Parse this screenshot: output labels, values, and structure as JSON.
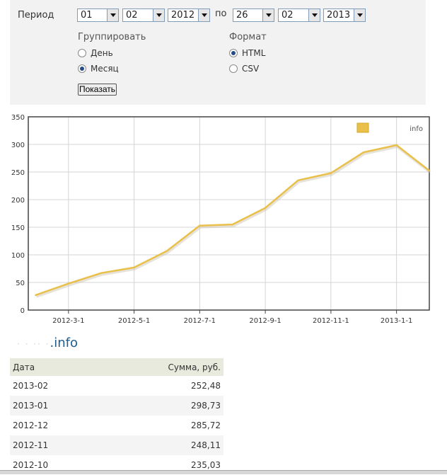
{
  "filter": {
    "period_label": "Период",
    "from": {
      "day": "01",
      "month": "02",
      "year": "2012"
    },
    "to_label": "по",
    "to": {
      "day": "26",
      "month": "02",
      "year": "2013"
    },
    "group_title": "Группировать",
    "group_options": [
      {
        "label": "День",
        "checked": false
      },
      {
        "label": "Месяц",
        "checked": true
      }
    ],
    "format_title": "Формат",
    "format_options": [
      {
        "label": "HTML",
        "checked": true
      },
      {
        "label": "CSV",
        "checked": false
      }
    ],
    "show_button": "Показать"
  },
  "chart_data": {
    "type": "line",
    "x": [
      "2012-02",
      "2012-03",
      "2012-04",
      "2012-05",
      "2012-06",
      "2012-07",
      "2012-08",
      "2012-09",
      "2012-10",
      "2012-11",
      "2012-12",
      "2013-01",
      "2013-02"
    ],
    "series": [
      {
        "name": "info",
        "values": [
          27,
          48,
          67,
          77,
          107,
          153,
          155,
          185,
          235.03,
          248.11,
          285.72,
          298.73,
          252.48
        ]
      }
    ],
    "xticks": [
      "2012-3-1",
      "2012-5-1",
      "2012-7-1",
      "2012-9-1",
      "2012-11-1",
      "2013-1-1"
    ],
    "yticks": [
      "0",
      "50",
      "100",
      "150",
      "200",
      "250",
      "300",
      "350"
    ],
    "ylim": [
      0,
      350
    ],
    "grid": true,
    "legend_position": "top-right",
    "colors": {
      "line": "#e8c04a",
      "grid": "#d4d4d4",
      "axis": "#444444"
    }
  },
  "site_link": {
    "text": ".info"
  },
  "table": {
    "headers": {
      "date": "Дата",
      "sum": "Сумма, руб."
    },
    "rows": [
      {
        "date": "2013-02",
        "sum": "252,48"
      },
      {
        "date": "2013-01",
        "sum": "298,73"
      },
      {
        "date": "2012-12",
        "sum": "285,72"
      },
      {
        "date": "2012-11",
        "sum": "248,11"
      },
      {
        "date": "2012-10",
        "sum": "235,03"
      }
    ]
  }
}
